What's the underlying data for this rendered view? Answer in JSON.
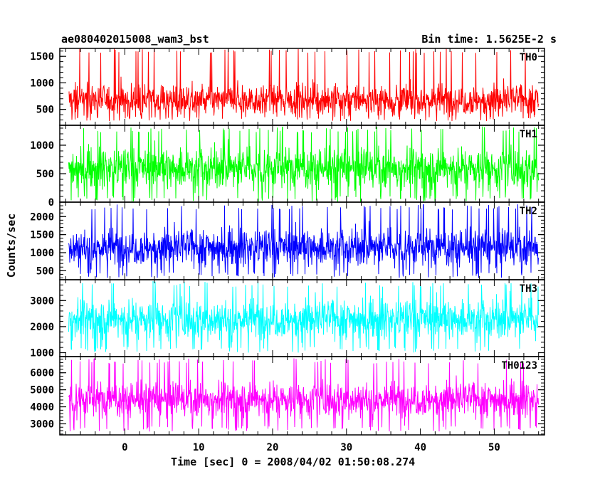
{
  "header": {
    "title_left": "ae080402015008_wam3_bst",
    "title_right": "Bin time: 1.5625E-2 s"
  },
  "chart_data": {
    "type": "line",
    "shared_x": true,
    "xlabel": "Time [sec] 0 = 2008/04/02 01:50:08.274",
    "ylabel": "Counts/sec",
    "xlim": [
      -8.8,
      56.8
    ],
    "x_data_range": [
      -7.6,
      56.0
    ],
    "x_ticks": [
      0,
      10,
      20,
      30,
      40,
      50
    ],
    "bin_time_s": 0.015625,
    "panels": [
      {
        "name": "TH0",
        "color": "#ff0000",
        "ylim": [
          200,
          1650
        ],
        "y_ticks": [
          500,
          1000,
          1500
        ],
        "mean": 680,
        "spread": 150,
        "min": 280,
        "max": 1650
      },
      {
        "name": "TH1",
        "color": "#00ff00",
        "ylim": [
          0,
          1350
        ],
        "y_ticks": [
          0,
          500,
          1000
        ],
        "mean": 600,
        "spread": 180,
        "min": 0,
        "max": 1330
      },
      {
        "name": "TH2",
        "color": "#0000ff",
        "ylim": [
          250,
          2400
        ],
        "y_ticks": [
          500,
          1000,
          1500,
          2000
        ],
        "mean": 1150,
        "spread": 260,
        "min": 300,
        "max": 2350
      },
      {
        "name": "TH3",
        "color": "#00ffff",
        "ylim": [
          850,
          3800
        ],
        "y_ticks": [
          1000,
          2000,
          3000
        ],
        "mean": 2300,
        "spread": 380,
        "min": 1000,
        "max": 3750
      },
      {
        "name": "TH0123",
        "color": "#ff00ff",
        "ylim": [
          2350,
          6950
        ],
        "y_ticks": [
          3000,
          4000,
          5000,
          6000
        ],
        "mean": 4450,
        "spread": 520,
        "min": 2550,
        "max": 6850
      }
    ]
  }
}
